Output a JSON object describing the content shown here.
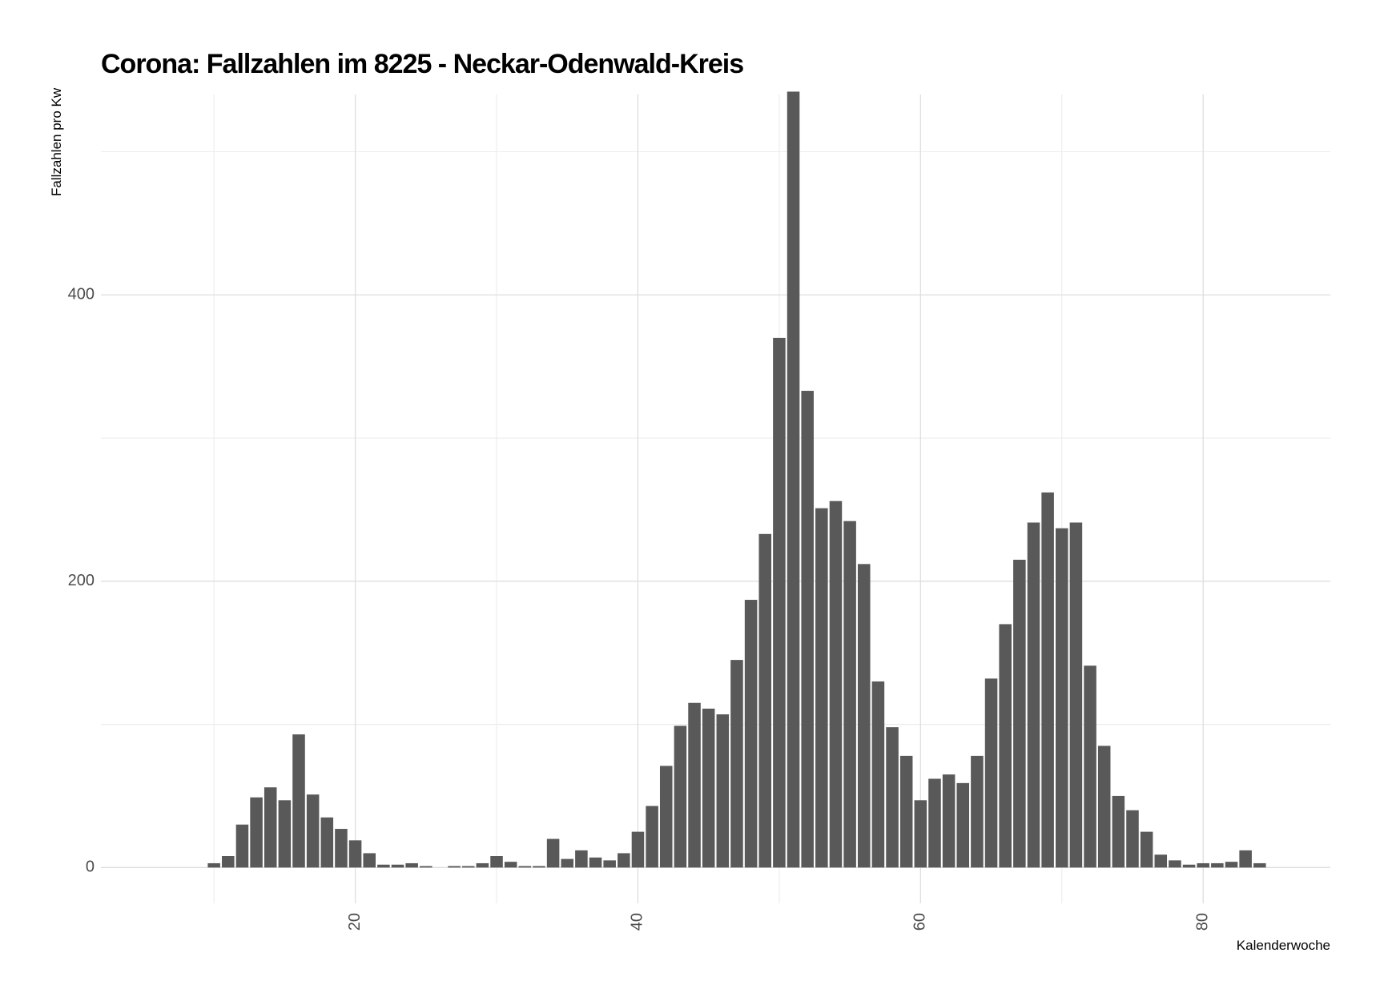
{
  "chart_data": {
    "type": "bar",
    "title": "Corona: Fallzahlen im 8225 - Neckar-Odenwald-Kreis",
    "xlabel": "Kalenderwoche",
    "ylabel": "Fallzahlen pro Kw",
    "xlim": [
      2,
      89
    ],
    "ylim": [
      -25,
      540
    ],
    "x_ticks": [
      20,
      40,
      60,
      80
    ],
    "y_ticks": [
      0,
      200,
      400
    ],
    "grid": true,
    "legend": "none",
    "bar_color": "#595959",
    "x": [
      10,
      11,
      12,
      13,
      14,
      15,
      16,
      17,
      18,
      19,
      20,
      21,
      22,
      23,
      24,
      25,
      26,
      27,
      28,
      29,
      30,
      31,
      32,
      33,
      34,
      35,
      36,
      37,
      38,
      39,
      40,
      41,
      42,
      43,
      44,
      45,
      46,
      47,
      48,
      49,
      50,
      51,
      52,
      53,
      54,
      55,
      56,
      57,
      58,
      59,
      60,
      61,
      62,
      63,
      64,
      65,
      66,
      67,
      68,
      69,
      70,
      71,
      72,
      73,
      74,
      75,
      76,
      77,
      78,
      79,
      80,
      81,
      82,
      83,
      84
    ],
    "values": [
      3,
      8,
      30,
      49,
      56,
      47,
      93,
      51,
      35,
      27,
      19,
      10,
      2,
      2,
      3,
      1,
      0,
      1,
      1,
      3,
      8,
      4,
      1,
      1,
      20,
      6,
      12,
      7,
      5,
      10,
      25,
      43,
      71,
      99,
      115,
      111,
      107,
      145,
      187,
      233,
      370,
      542,
      333,
      251,
      256,
      242,
      212,
      130,
      98,
      78,
      47,
      62,
      65,
      59,
      78,
      132,
      170,
      215,
      241,
      262,
      237,
      241,
      141,
      85,
      50,
      40,
      25,
      9,
      5,
      2,
      3,
      3,
      4,
      12,
      3
    ]
  }
}
